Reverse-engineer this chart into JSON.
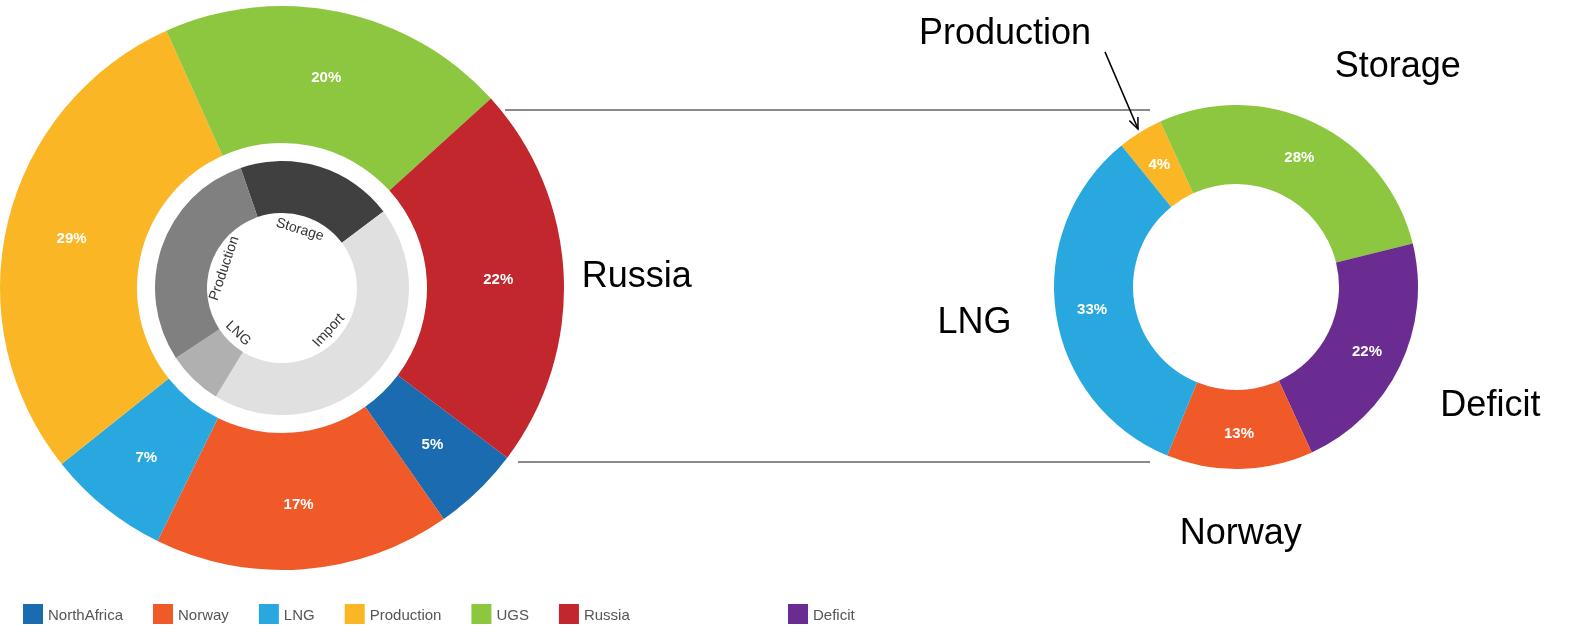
{
  "chart_data": [
    {
      "type": "donut",
      "categories": [
        "NorthAfrica",
        "Norway",
        "LNG",
        "Production",
        "UGS",
        "Russia"
      ],
      "values": [
        5,
        17,
        7,
        29,
        20,
        22
      ],
      "colors": [
        "#1a6bb0",
        "#f05a28",
        "#29a8e0",
        "#fbb625",
        "#8dc63f",
        "#c1272d"
      ],
      "value_labels": [
        "5%",
        "17%",
        "7%",
        "29%",
        "20%",
        "22%"
      ],
      "annotations": [
        {
          "text": "Russia",
          "x": "Russia"
        }
      ],
      "legend": "bottom"
    },
    {
      "type": "donut",
      "categories": [
        "Storage",
        "Import",
        "LNG",
        "Production"
      ],
      "values": [
        20,
        44,
        7,
        29
      ],
      "colors": [
        "#404040",
        "#e0e0e0",
        "#b0b0b0",
        "#808080"
      ]
    },
    {
      "type": "donut",
      "categories": [
        "Production",
        "Storage",
        "Deficit",
        "Norway",
        "LNG"
      ],
      "values": [
        4,
        28,
        22,
        13,
        33
      ],
      "colors": [
        "#fbb625",
        "#8dc63f",
        "#6b2c91",
        "#f05a28",
        "#29a8e0"
      ],
      "value_labels": [
        "4%",
        "28%",
        "22%",
        "13%",
        "33%"
      ],
      "legend": "bottom left"
    }
  ]
}
